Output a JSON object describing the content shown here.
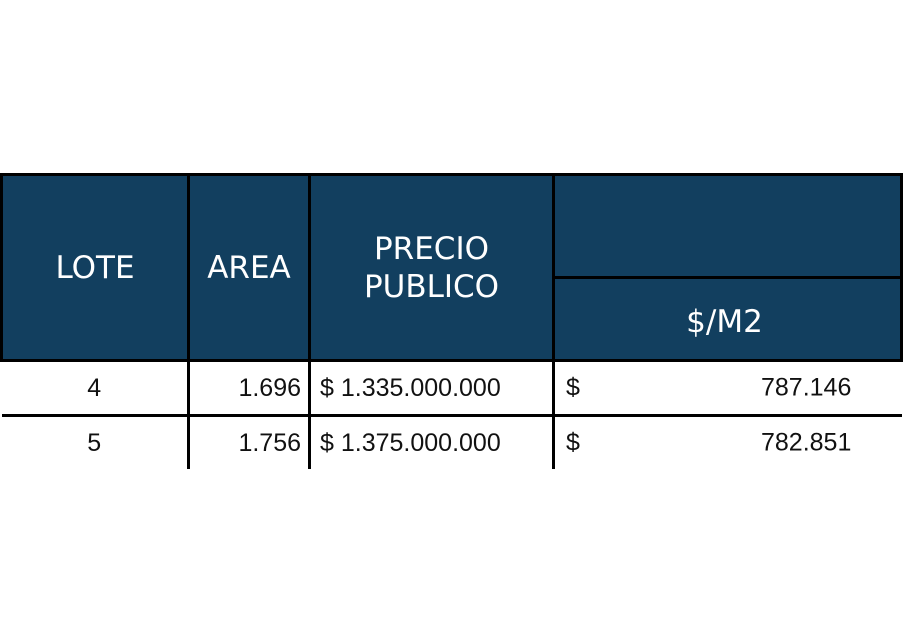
{
  "table": {
    "headers": {
      "lote": "LOTE",
      "area": "AREA",
      "precio_line1": "PRECIO",
      "precio_line2": "PUBLICO",
      "group": "",
      "sub": "$/M2"
    },
    "rows": [
      {
        "lote": "4",
        "area": "1.696",
        "precio": "$ 1.335.000.000",
        "currency": "$",
        "per_m2": "787.146"
      },
      {
        "lote": "5",
        "area": "1.756",
        "precio": "$ 1.375.000.000",
        "currency": "$",
        "per_m2": "782.851"
      }
    ]
  },
  "colors": {
    "header_bg": "#123f5f",
    "header_text": "#ffffff",
    "grid": "#000000"
  }
}
